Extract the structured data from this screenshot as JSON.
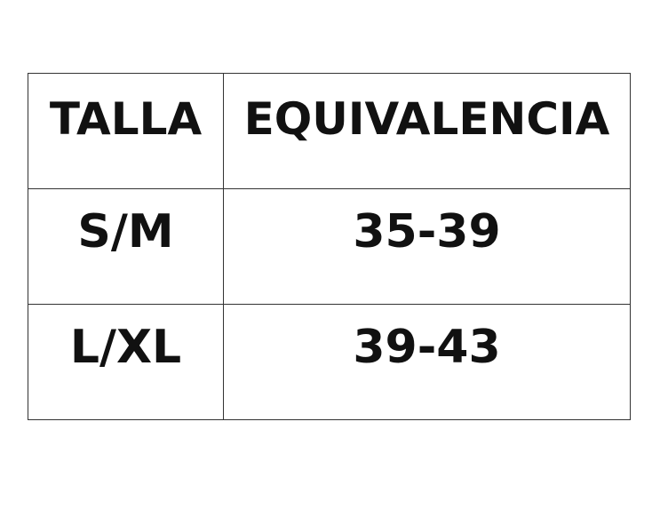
{
  "table": {
    "header": [
      "TALLA",
      "EQUIVALENCIA"
    ],
    "rows": [
      [
        "S/M",
        "35-39"
      ],
      [
        "L/XL",
        "39-43"
      ]
    ]
  }
}
